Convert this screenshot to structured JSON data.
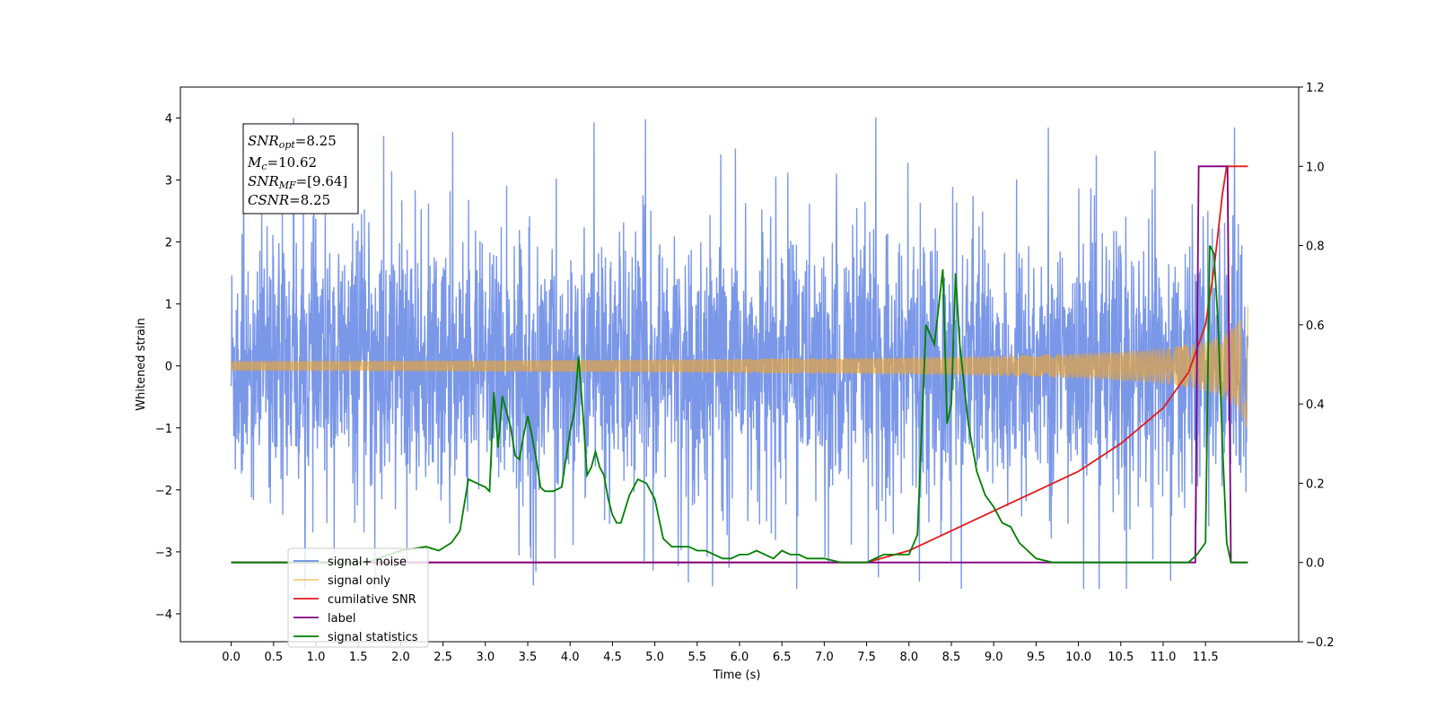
{
  "chart_data": {
    "type": "line",
    "xlabel": "Time (s)",
    "ylabel": "Whitened strain",
    "xlim": [
      -0.6,
      12.6
    ],
    "ylim": [
      -4.45,
      4.5
    ],
    "ylim_right": [
      -0.2,
      1.2
    ],
    "grid": false,
    "legend_placement": "lower-left",
    "x_ticks": [
      "0.0",
      "0.5",
      "1.0",
      "1.5",
      "2.0",
      "2.5",
      "3.0",
      "3.5",
      "4.0",
      "4.5",
      "5.0",
      "5.5",
      "6.0",
      "6.5",
      "7.0",
      "7.5",
      "8.0",
      "8.5",
      "9.0",
      "9.5",
      "10.0",
      "10.5",
      "11.0",
      "11.5"
    ],
    "y_ticks_left": [
      "4",
      "3",
      "2",
      "1",
      "0",
      "−1",
      "−2",
      "−3",
      "−4"
    ],
    "y_ticks_right": [
      "1.2",
      "1.0",
      "0.8",
      "0.6",
      "0.4",
      "0.2",
      "0.0",
      "−0.2"
    ],
    "annotation": {
      "snr_opt": {
        "sym": "SNR",
        "sub": "opt",
        "value": "=8.25"
      },
      "mc": {
        "sym": "M",
        "sub": "c",
        "value": "=10.62"
      },
      "snr_mf": {
        "sym": "SNR",
        "sub": "MF",
        "value": "=[9.64]"
      },
      "csnr": {
        "sym": "CSNR",
        "sub": "",
        "value": "=8.25"
      }
    },
    "series": [
      {
        "name": "signal+ noise",
        "color": "#6b8ce6",
        "axis": "left",
        "kind": "noise",
        "x_range": [
          0.0,
          12.0
        ],
        "y_range": [
          -3.6,
          4.1
        ]
      },
      {
        "name": "signal only",
        "color": "#f5a623",
        "axis": "left",
        "kind": "chirp",
        "x_range": [
          0.0,
          12.0
        ],
        "peak_amplitude": 1.0
      },
      {
        "name": "cumilative SNR",
        "color": "#e41a1c",
        "axis": "right",
        "x": [
          0,
          7.0,
          7.5,
          8.0,
          8.5,
          9.0,
          9.5,
          10.0,
          10.5,
          11.0,
          11.3,
          11.5,
          11.6,
          11.7,
          11.75,
          12.0
        ],
        "y": [
          0,
          0.0,
          0.0,
          0.03,
          0.08,
          0.13,
          0.18,
          0.23,
          0.3,
          0.39,
          0.48,
          0.6,
          0.74,
          0.93,
          1.0,
          1.0
        ]
      },
      {
        "name": "label",
        "color": "#800080",
        "axis": "right",
        "x": [
          0,
          11.38,
          11.42,
          11.7,
          11.76,
          11.8,
          12.0
        ],
        "y": [
          0,
          0,
          1,
          1,
          1,
          0,
          0
        ]
      },
      {
        "name": "signal statistics",
        "color": "#008000",
        "axis": "right",
        "x": [
          0,
          1.6,
          2.0,
          2.3,
          2.45,
          2.6,
          2.7,
          2.8,
          2.9,
          3.0,
          3.05,
          3.1,
          3.15,
          3.2,
          3.25,
          3.3,
          3.35,
          3.4,
          3.45,
          3.5,
          3.55,
          3.6,
          3.65,
          3.7,
          3.75,
          3.8,
          3.9,
          4.0,
          4.05,
          4.1,
          4.15,
          4.2,
          4.25,
          4.3,
          4.35,
          4.4,
          4.45,
          4.5,
          4.55,
          4.6,
          4.7,
          4.8,
          4.9,
          5.0,
          5.1,
          5.2,
          5.3,
          5.4,
          5.5,
          5.6,
          5.7,
          5.8,
          5.9,
          6.0,
          6.1,
          6.2,
          6.3,
          6.4,
          6.5,
          6.6,
          6.7,
          6.8,
          7.0,
          7.2,
          7.5,
          7.7,
          8.0,
          8.1,
          8.2,
          8.3,
          8.4,
          8.45,
          8.5,
          8.55,
          8.6,
          8.7,
          8.8,
          8.9,
          9.0,
          9.1,
          9.2,
          9.3,
          9.5,
          9.7,
          10.0,
          10.5,
          11.0,
          11.3,
          11.4,
          11.5,
          11.55,
          11.6,
          11.65,
          11.7,
          11.75,
          11.8,
          11.9,
          12.0
        ],
        "y": [
          0,
          0,
          0.03,
          0.04,
          0.03,
          0.05,
          0.08,
          0.21,
          0.2,
          0.19,
          0.18,
          0.43,
          0.29,
          0.42,
          0.38,
          0.34,
          0.27,
          0.26,
          0.32,
          0.37,
          0.32,
          0.26,
          0.19,
          0.18,
          0.18,
          0.18,
          0.19,
          0.33,
          0.38,
          0.52,
          0.38,
          0.22,
          0.24,
          0.28,
          0.24,
          0.22,
          0.16,
          0.12,
          0.1,
          0.1,
          0.17,
          0.21,
          0.2,
          0.16,
          0.06,
          0.04,
          0.04,
          0.04,
          0.03,
          0.03,
          0.02,
          0.01,
          0.01,
          0.02,
          0.02,
          0.03,
          0.02,
          0.01,
          0.03,
          0.02,
          0.02,
          0.01,
          0.01,
          0.0,
          0.0,
          0.02,
          0.02,
          0.07,
          0.6,
          0.55,
          0.74,
          0.35,
          0.4,
          0.73,
          0.55,
          0.35,
          0.23,
          0.17,
          0.14,
          0.1,
          0.09,
          0.05,
          0.01,
          0.0,
          0.0,
          0.0,
          0.0,
          0.0,
          0.02,
          0.05,
          0.8,
          0.78,
          0.6,
          0.3,
          0.05,
          0.0,
          0.0,
          0.0
        ]
      }
    ],
    "legend": [
      {
        "label": "signal+ noise",
        "color": "#6b8ce6",
        "alpha": 1
      },
      {
        "label": "signal only",
        "color": "#f5a623",
        "alpha": 0.6
      },
      {
        "label": "cumilative SNR",
        "color": "#e41a1c",
        "alpha": 1
      },
      {
        "label": "label",
        "color": "#800080",
        "alpha": 1
      },
      {
        "label": "signal statistics",
        "color": "#008000",
        "alpha": 1
      }
    ]
  }
}
